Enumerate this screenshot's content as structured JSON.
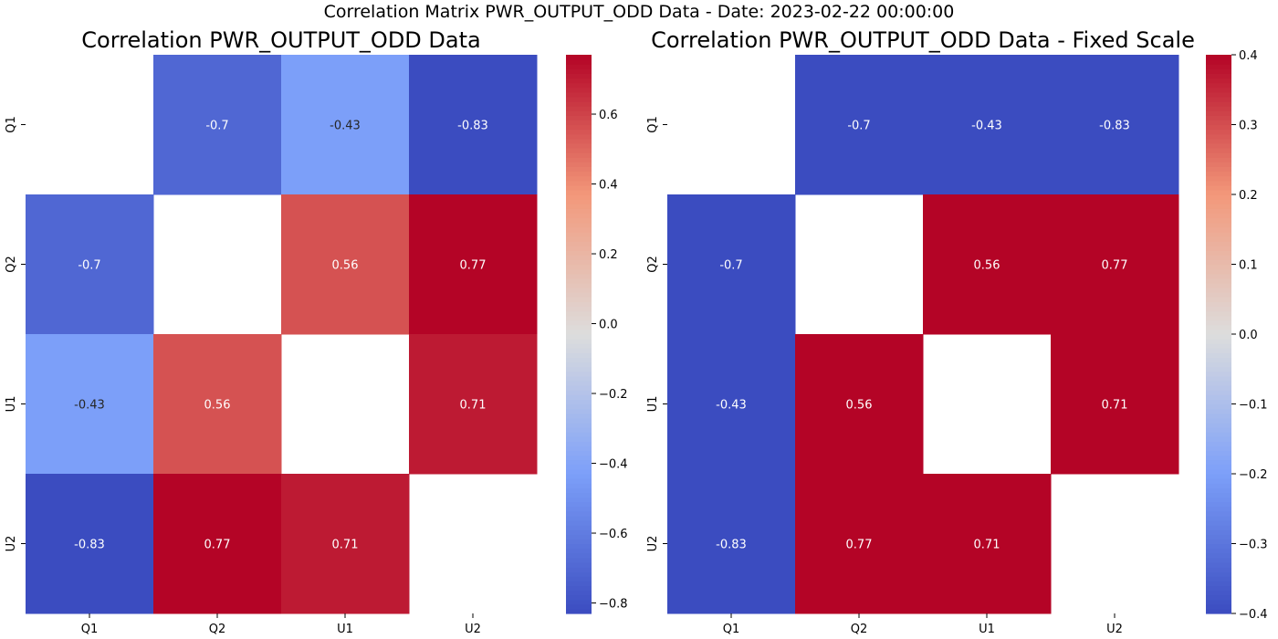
{
  "suptitle": "Correlation Matrix PWR_OUTPUT_ODD Data - Date: 2023-02-22 00:00:00",
  "chart_data": [
    {
      "type": "heatmap",
      "title": "Correlation PWR_OUTPUT_ODD Data",
      "x_categories": [
        "Q1",
        "Q2",
        "U1",
        "U2"
      ],
      "y_categories": [
        "Q1",
        "Q2",
        "U1",
        "U2"
      ],
      "values": [
        [
          null,
          -0.7,
          -0.43,
          -0.83
        ],
        [
          -0.7,
          null,
          0.56,
          0.77
        ],
        [
          -0.43,
          0.56,
          null,
          0.71
        ],
        [
          -0.83,
          0.77,
          0.71,
          null
        ]
      ],
      "colormap": "coolwarm",
      "vmin": -0.83,
      "vmax": 0.77,
      "colorbar_ticks": [
        -0.8,
        -0.6,
        -0.4,
        -0.2,
        0.0,
        0.2,
        0.4,
        0.6
      ],
      "colorbar_tick_labels": [
        "−0.8",
        "−0.6",
        "−0.4",
        "−0.2",
        "0.0",
        "0.2",
        "0.4",
        "0.6"
      ]
    },
    {
      "type": "heatmap",
      "title": "Correlation PWR_OUTPUT_ODD Data - Fixed Scale",
      "x_categories": [
        "Q1",
        "Q2",
        "U1",
        "U2"
      ],
      "y_categories": [
        "Q1",
        "Q2",
        "U1",
        "U2"
      ],
      "values": [
        [
          null,
          -0.7,
          -0.43,
          -0.83
        ],
        [
          -0.7,
          null,
          0.56,
          0.77
        ],
        [
          -0.43,
          0.56,
          null,
          0.71
        ],
        [
          -0.83,
          0.77,
          0.71,
          null
        ]
      ],
      "colormap": "coolwarm",
      "vmin": -0.4,
      "vmax": 0.4,
      "colorbar_ticks": [
        -0.4,
        -0.3,
        -0.2,
        -0.1,
        0.0,
        0.1,
        0.2,
        0.3,
        0.4
      ],
      "colorbar_tick_labels": [
        "−0.4",
        "−0.3",
        "−0.2",
        "−0.1",
        "0.0",
        "0.1",
        "0.2",
        "0.3",
        "0.4"
      ]
    }
  ]
}
